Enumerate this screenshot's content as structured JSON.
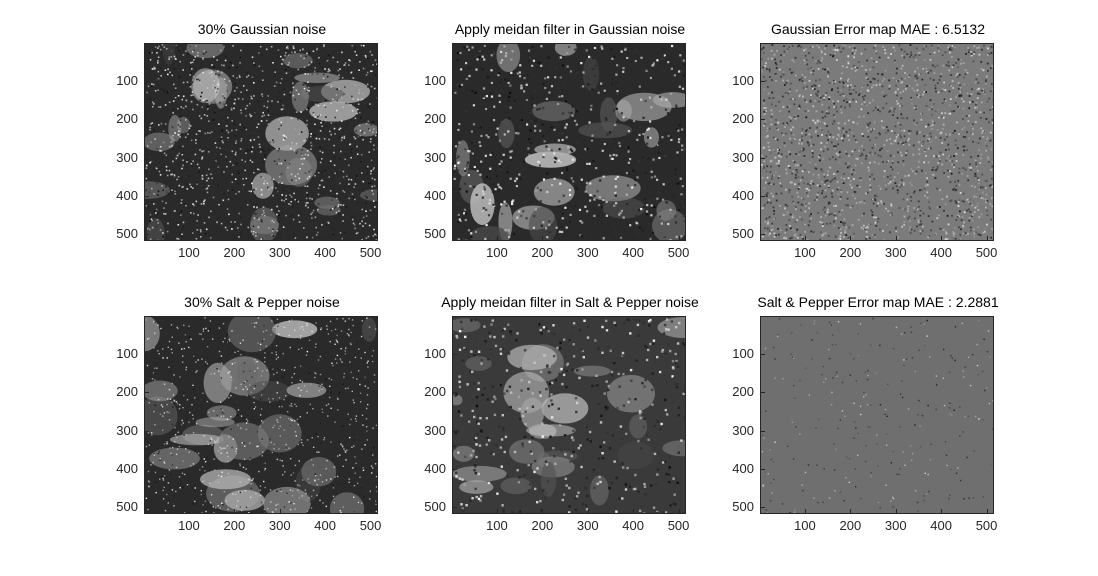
{
  "figure": {
    "panels": [
      {
        "id": "p1",
        "title": "30% Gaussian noise",
        "kind": "noisy-gauss"
      },
      {
        "id": "p2",
        "title": "Apply meidan filter in Gaussian noise",
        "kind": "filtered-gauss"
      },
      {
        "id": "p3",
        "title": "Gaussian Error map   MAE : 6.5132",
        "kind": "error-gauss"
      },
      {
        "id": "p4",
        "title": "30% Salt & Pepper noise",
        "kind": "noisy-sp"
      },
      {
        "id": "p5",
        "title": "Apply meidan filter in Salt & Pepper noise",
        "kind": "filtered-sp"
      },
      {
        "id": "p6",
        "title": "Salt & Pepper Error map   MAE : 2.2881",
        "kind": "error-sp"
      }
    ],
    "x_ticks": [
      "100",
      "200",
      "300",
      "400",
      "500"
    ],
    "y_ticks": [
      "100",
      "200",
      "300",
      "400",
      "500"
    ],
    "axis_range": [
      1,
      512
    ]
  }
}
